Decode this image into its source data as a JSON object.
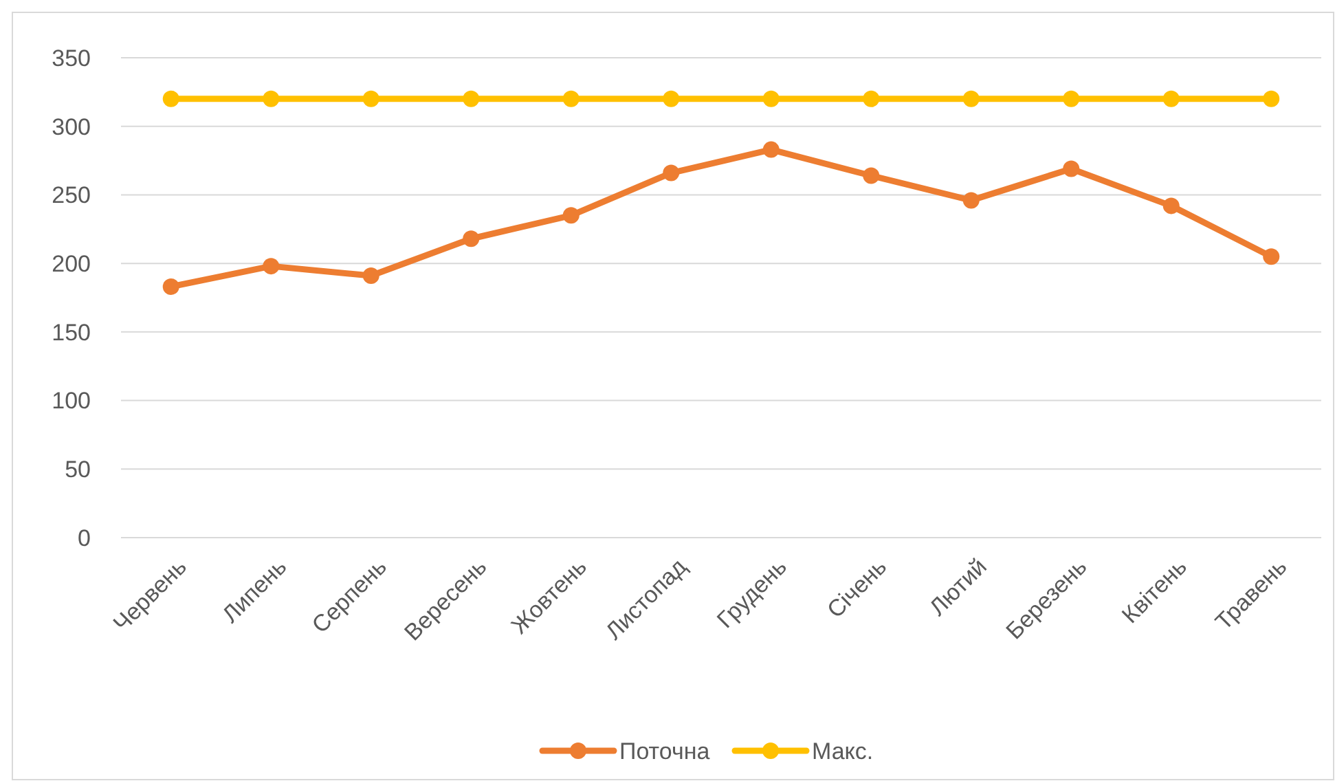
{
  "chart_data": {
    "type": "line",
    "categories": [
      "Червень",
      "Липень",
      "Серпень",
      "Вересень",
      "Жовтень",
      "Листопад",
      "Грудень",
      "Січень",
      "Лютий",
      "Березень",
      "Квітень",
      "Травень"
    ],
    "series": [
      {
        "name": "Поточна",
        "color": "#ed7d31",
        "values": [
          183,
          198,
          191,
          218,
          235,
          266,
          283,
          264,
          246,
          269,
          242,
          205
        ]
      },
      {
        "name": "Макс.",
        "color": "#ffc000",
        "values": [
          320,
          320,
          320,
          320,
          320,
          320,
          320,
          320,
          320,
          320,
          320,
          320
        ]
      }
    ],
    "ylim": [
      0,
      350
    ],
    "yticks": [
      0,
      50,
      100,
      150,
      200,
      250,
      300,
      350
    ],
    "grid": "y",
    "legend": "bottom",
    "marker": "circle",
    "line_style": "solid"
  }
}
